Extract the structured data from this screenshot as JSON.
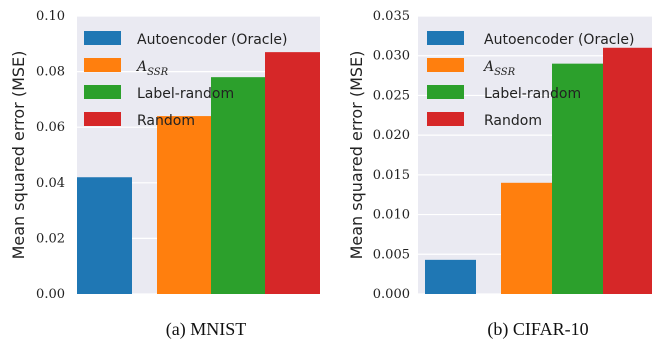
{
  "chart_data": [
    {
      "type": "bar",
      "caption": "(a)  MNIST",
      "ylabel": "Mean squared error (MSE)",
      "ylim": [
        0,
        0.1
      ],
      "yticks": [
        "0.00",
        "0.02",
        "0.04",
        "0.06",
        "0.08",
        "0.10"
      ],
      "grid": true,
      "legend_position": "top-left",
      "categories": [
        "Autoencoder (Oracle)",
        "A_SSR",
        "Label-random",
        "Random"
      ],
      "values": [
        0.042,
        0.064,
        0.078,
        0.087
      ],
      "colors": [
        "#1f77b4",
        "#ff7f0e",
        "#2ca02c",
        "#d62728"
      ]
    },
    {
      "type": "bar",
      "caption": "(b)  CIFAR-10",
      "ylabel": "Mean squared error (MSE)",
      "ylim": [
        0,
        0.035
      ],
      "yticks": [
        "0.000",
        "0.005",
        "0.010",
        "0.015",
        "0.020",
        "0.025",
        "0.030",
        "0.035"
      ],
      "grid": true,
      "legend_position": "top-left",
      "categories": [
        "Autoencoder (Oracle)",
        "A_SSR",
        "Label-random",
        "Random"
      ],
      "values": [
        0.0043,
        0.014,
        0.029,
        0.031
      ],
      "colors": [
        "#1f77b4",
        "#ff7f0e",
        "#2ca02c",
        "#d62728"
      ]
    }
  ]
}
